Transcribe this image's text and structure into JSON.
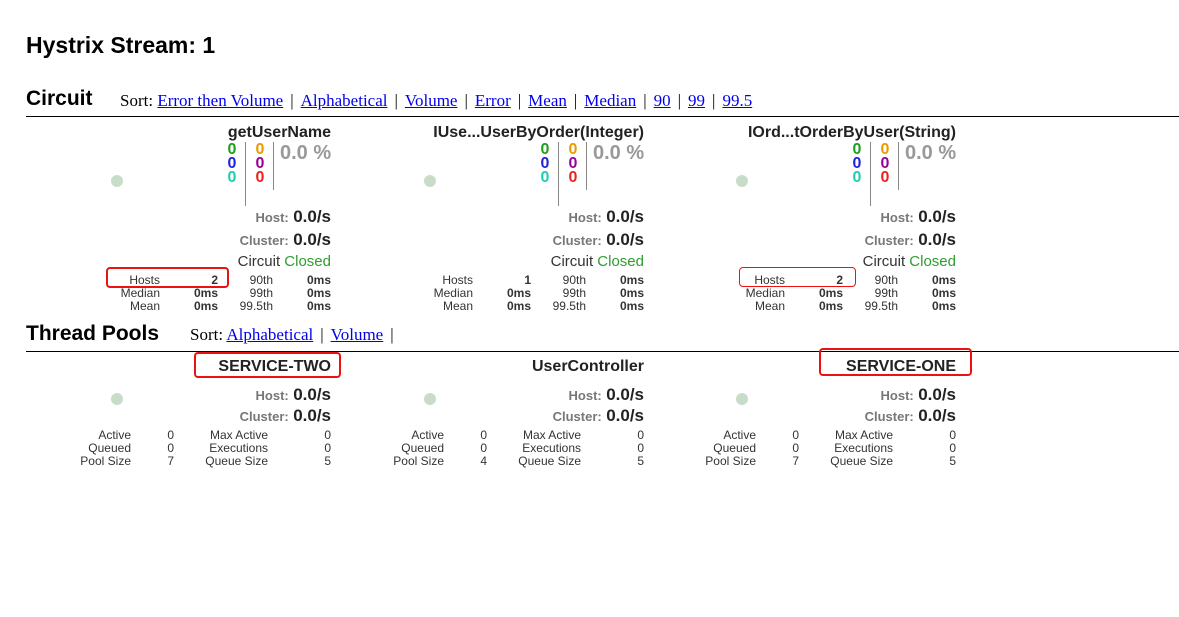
{
  "page_title": "Hystrix Stream: 1",
  "circuit_section": {
    "title": "Circuit",
    "sort_label": "Sort:",
    "sort_options": [
      "Error then Volume",
      "Alphabetical",
      "Volume",
      "Error",
      "Mean",
      "Median",
      "90",
      "99",
      "99.5"
    ]
  },
  "circuits": [
    {
      "name": "getUserName",
      "counts": {
        "success": "0",
        "short_circuited": "0",
        "bad_request": "0",
        "timeout": "0",
        "rejected": "0",
        "failure": "0"
      },
      "error_rate": "0.0 %",
      "host_label": "Host:",
      "host_rate": "0.0/s",
      "cluster_label": "Cluster:",
      "cluster_rate": "0.0/s",
      "circuit_label": "Circuit",
      "circuit_status": "Closed",
      "hosts_label": "Hosts",
      "hosts": "2",
      "median_label": "Median",
      "median": "0ms",
      "mean_label": "Mean",
      "mean": "0ms",
      "p90_label": "90th",
      "p90": "0ms",
      "p99_label": "99th",
      "p99": "0ms",
      "p995_label": "99.5th",
      "p995": "0ms"
    },
    {
      "name": "IUse...UserByOrder(Integer)",
      "counts": {
        "success": "0",
        "short_circuited": "0",
        "bad_request": "0",
        "timeout": "0",
        "rejected": "0",
        "failure": "0"
      },
      "error_rate": "0.0 %",
      "host_label": "Host:",
      "host_rate": "0.0/s",
      "cluster_label": "Cluster:",
      "cluster_rate": "0.0/s",
      "circuit_label": "Circuit",
      "circuit_status": "Closed",
      "hosts_label": "Hosts",
      "hosts": "1",
      "median_label": "Median",
      "median": "0ms",
      "mean_label": "Mean",
      "mean": "0ms",
      "p90_label": "90th",
      "p90": "0ms",
      "p99_label": "99th",
      "p99": "0ms",
      "p995_label": "99.5th",
      "p995": "0ms"
    },
    {
      "name": "IOrd...tOrderByUser(String)",
      "counts": {
        "success": "0",
        "short_circuited": "0",
        "bad_request": "0",
        "timeout": "0",
        "rejected": "0",
        "failure": "0"
      },
      "error_rate": "0.0 %",
      "host_label": "Host:",
      "host_rate": "0.0/s",
      "cluster_label": "Cluster:",
      "cluster_rate": "0.0/s",
      "circuit_label": "Circuit",
      "circuit_status": "Closed",
      "hosts_label": "Hosts",
      "hosts": "2",
      "median_label": "Median",
      "median": "0ms",
      "mean_label": "Mean",
      "mean": "0ms",
      "p90_label": "90th",
      "p90": "0ms",
      "p99_label": "99th",
      "p99": "0ms",
      "p995_label": "99.5th",
      "p995": "0ms"
    }
  ],
  "thread_pool_section": {
    "title": "Thread Pools",
    "sort_label": "Sort:",
    "sort_options": [
      "Alphabetical",
      "Volume"
    ],
    "trailing_sep": "|"
  },
  "thread_pools": [
    {
      "name": "SERVICE-TWO",
      "host_label": "Host:",
      "host_rate": "0.0/s",
      "cluster_label": "Cluster:",
      "cluster_rate": "0.0/s",
      "active_label": "Active",
      "active": "0",
      "queued_label": "Queued",
      "queued": "0",
      "pool_size_label": "Pool Size",
      "pool_size": "7",
      "max_active_label": "Max Active",
      "max_active": "0",
      "executions_label": "Executions",
      "executions": "0",
      "queue_size_label": "Queue Size",
      "queue_size": "5"
    },
    {
      "name": "UserController",
      "host_label": "Host:",
      "host_rate": "0.0/s",
      "cluster_label": "Cluster:",
      "cluster_rate": "0.0/s",
      "active_label": "Active",
      "active": "0",
      "queued_label": "Queued",
      "queued": "0",
      "pool_size_label": "Pool Size",
      "pool_size": "4",
      "max_active_label": "Max Active",
      "max_active": "0",
      "executions_label": "Executions",
      "executions": "0",
      "queue_size_label": "Queue Size",
      "queue_size": "5"
    },
    {
      "name": "SERVICE-ONE",
      "host_label": "Host:",
      "host_rate": "0.0/s",
      "cluster_label": "Cluster:",
      "cluster_rate": "0.0/s",
      "active_label": "Active",
      "active": "0",
      "queued_label": "Queued",
      "queued": "0",
      "pool_size_label": "Pool Size",
      "pool_size": "7",
      "max_active_label": "Max Active",
      "max_active": "0",
      "executions_label": "Executions",
      "executions": "0",
      "queue_size_label": "Queue Size",
      "queue_size": "5"
    }
  ],
  "colors": {
    "success": "#1e9e1e",
    "short_circuited": "#2222dd",
    "bad_request": "#22ccaa",
    "timeout": "#ee9900",
    "rejected": "#990099",
    "failure": "#ee2222",
    "highlight": "#ee1111",
    "circuit_closed": "#2e9e2e"
  }
}
